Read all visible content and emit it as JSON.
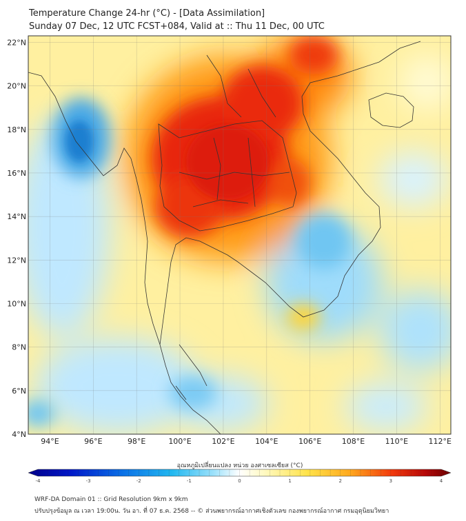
{
  "title": {
    "line1": "Temperature Change 24-hr (°C) - [Data Assimilation]",
    "line2": "Sunday 07 Dec, 12 UTC FCST+084, Valid at :: Thu 11 Dec, 00 UTC"
  },
  "map": {
    "lat_labels": [
      "22°N",
      "20°N",
      "18°N",
      "16°N",
      "14°N",
      "12°N",
      "10°N",
      "8°N",
      "6°N",
      "4°N"
    ],
    "lon_labels": [
      "94°E",
      "96°E",
      "98°E",
      "100°E",
      "102°E",
      "104°E",
      "106°E",
      "108°E",
      "110°E",
      "112°E"
    ],
    "lat_range": [
      4,
      22.3
    ],
    "lon_range": [
      93,
      112.5
    ]
  },
  "colorbar": {
    "title": "อุณหภูมิเปลี่ยนแปลง หน่วย องศาเซลเซียส (°C)",
    "tick_labels": [
      "-4",
      "-3",
      "-2",
      "-1",
      "0",
      "1",
      "2",
      "3",
      "4"
    ],
    "min": -4,
    "max": 4
  },
  "footer": {
    "line1": "WRF-DA Domain 01 :: Grid Resolution 9km x 9km",
    "line2": "ปรับปรุงข้อมูล ณ เวลา 19:00น. วัน อา. ที่ 07 ธ.ค. 2568 -- © ส่วนพยากรณ์อากาศเชิงตัวเลข กองพยากรณ์อากาศ กรมอุตุนิยมวิทยา"
  },
  "colors": {
    "ocean_base": "#bfe6ff",
    "land_base": "#fff3a8",
    "hot_core": "#e31a0a",
    "hot_mid": "#ff8a10",
    "cold_core": "#1f8ad6",
    "coast": "#333333"
  }
}
